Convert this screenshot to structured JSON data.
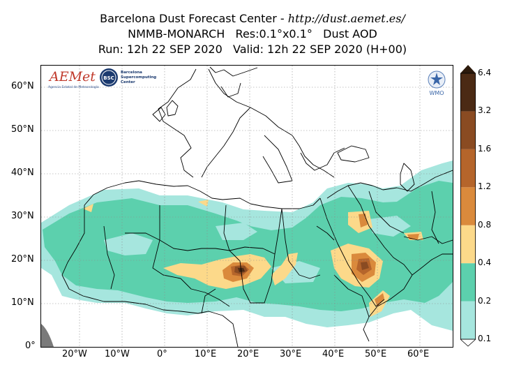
{
  "header": {
    "center_name": "Barcelona Dust Forecast Center - ",
    "url": "http://dust.aemet.es/",
    "model_line": "NMMB-MONARCH   Res:0.1°x0.1°   Dust AOD",
    "run_line": "Run: 12h 22 SEP 2020   Valid: 12h 22 SEP 2020 (H+00)"
  },
  "map": {
    "variable": "Dust AOD",
    "lat_ticks": [
      "60°N",
      "50°N",
      "40°N",
      "30°N",
      "20°N",
      "10°N",
      "0°"
    ],
    "lon_ticks": [
      "20°W",
      "10°W",
      "0°",
      "10°E",
      "20°E",
      "30°E",
      "40°E",
      "50°E",
      "60°E"
    ]
  },
  "logos": {
    "aemet": "AEMet",
    "aemet_sub": "Agencia Estatal de Meteorología",
    "bsc": "BSC",
    "bsc_name_1": "Barcelona",
    "bsc_name_2": "Supercomputing",
    "bsc_name_3": "Center",
    "wmo": "WMO"
  },
  "colorbar": {
    "levels": [
      "0.1",
      "0.2",
      "0.4",
      "0.8",
      "1.2",
      "1.6",
      "3.2",
      "6.4"
    ],
    "colors": [
      "#a6e6de",
      "#5cd0ad",
      "#fcd98a",
      "#da8a3c",
      "#b5652b",
      "#8a4b22",
      "#4b2a14",
      "#2c1a0c"
    ]
  }
}
